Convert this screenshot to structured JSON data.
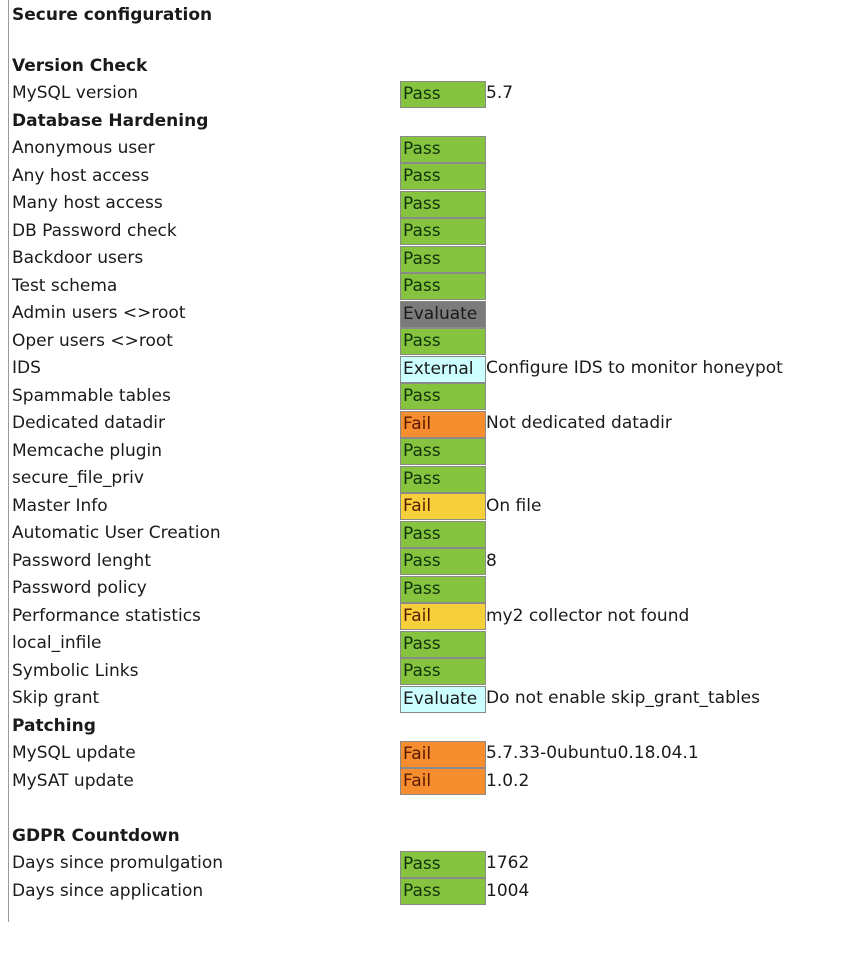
{
  "title": "Secure configuration",
  "status_colors": {
    "Pass": "#86c440",
    "Evaluate_gray": "#7b7b7b",
    "External": "#ccffff",
    "Evaluate_light": "#ccffff",
    "Fail_orange": "#f68d2e",
    "Fail_yellow": "#f5d03a"
  },
  "rows": [
    {
      "type": "section",
      "label": "Version Check"
    },
    {
      "label": "MySQL version",
      "status": "Pass",
      "color": "#86c440",
      "value": "5.7"
    },
    {
      "type": "section",
      "label": "Database Hardening"
    },
    {
      "label": "Anonymous user",
      "status": "Pass",
      "color": "#86c440",
      "value": ""
    },
    {
      "label": "Any host access",
      "status": "Pass",
      "color": "#86c440",
      "value": ""
    },
    {
      "label": "Many host access",
      "status": "Pass",
      "color": "#86c440",
      "value": ""
    },
    {
      "label": "DB Password check",
      "status": "Pass",
      "color": "#86c440",
      "value": ""
    },
    {
      "label": "Backdoor users",
      "status": "Pass",
      "color": "#86c440",
      "value": ""
    },
    {
      "label": "Test schema",
      "status": "Pass",
      "color": "#86c440",
      "value": ""
    },
    {
      "label": "Admin users <>root",
      "status": "Evaluate",
      "color": "#7b7b7b",
      "value": ""
    },
    {
      "label": "Oper users <>root",
      "status": "Pass",
      "color": "#86c440",
      "value": ""
    },
    {
      "label": "IDS",
      "status": "External",
      "color": "#ccffff",
      "value": "Configure IDS to monitor honeypot"
    },
    {
      "label": "Spammable tables",
      "status": "Pass",
      "color": "#86c440",
      "value": ""
    },
    {
      "label": "Dedicated datadir",
      "status": "Fail",
      "color": "#f68d2e",
      "value": "Not dedicated datadir"
    },
    {
      "label": "Memcache plugin",
      "status": "Pass",
      "color": "#86c440",
      "value": ""
    },
    {
      "label": "secure_file_priv",
      "status": "Pass",
      "color": "#86c440",
      "value": ""
    },
    {
      "label": "Master Info",
      "status": "Fail",
      "color": "#f5d03a",
      "value": "On file"
    },
    {
      "label": "Automatic User Creation",
      "status": "Pass",
      "color": "#86c440",
      "value": ""
    },
    {
      "label": "Password lenght",
      "status": "Pass",
      "color": "#86c440",
      "value": "8"
    },
    {
      "label": "Password policy",
      "status": "Pass",
      "color": "#86c440",
      "value": ""
    },
    {
      "label": "Performance statistics",
      "status": "Fail",
      "color": "#f5d03a",
      "value": "my2 collector not found"
    },
    {
      "label": "local_infile",
      "status": "Pass",
      "color": "#86c440",
      "value": ""
    },
    {
      "label": "Symbolic Links",
      "status": "Pass",
      "color": "#86c440",
      "value": ""
    },
    {
      "label": "Skip grant",
      "status": "Evaluate",
      "color": "#ccffff",
      "value": "Do not enable skip_grant_tables"
    },
    {
      "type": "section",
      "label": "Patching"
    },
    {
      "label": "MySQL update",
      "status": "Fail",
      "color": "#f68d2e",
      "value": "5.7.33-0ubuntu0.18.04.1"
    },
    {
      "label": "MySAT update",
      "status": "Fail",
      "color": "#f68d2e",
      "value": "1.0.2"
    },
    {
      "type": "blank"
    },
    {
      "type": "section",
      "label": "GDPR Countdown"
    },
    {
      "label": "Days since promulgation",
      "status": "Pass",
      "color": "#86c440",
      "value": "1762"
    },
    {
      "label": "Days since application",
      "status": "Pass",
      "color": "#86c440",
      "value": "1004"
    }
  ]
}
